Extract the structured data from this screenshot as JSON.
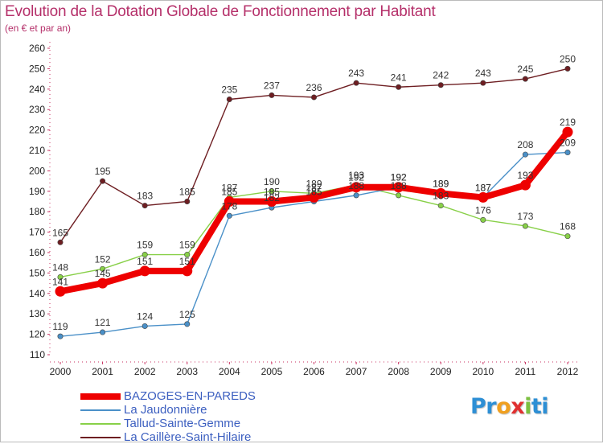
{
  "title": "Evolution de la Dotation Globale de Fonctionnement par Habitant",
  "subtitle": "(en € et par an)",
  "logo": {
    "text": "Proxiti",
    "letters": [
      "P",
      "r",
      "o",
      "x",
      "i",
      "t",
      "i"
    ],
    "colors": [
      "#2d8fd5",
      "#2d8fd5",
      "#f0a020",
      "#e03030",
      "#7cc040",
      "#2d8fd5",
      "#2d8fd5"
    ]
  },
  "chart_data": {
    "type": "line",
    "title": "Evolution de la Dotation Globale de Fonctionnement par Habitant",
    "ylabel": "(en € et par an)",
    "xlabel": "",
    "ylim": [
      110,
      260
    ],
    "yticks": [
      110,
      120,
      130,
      140,
      150,
      160,
      170,
      180,
      190,
      200,
      210,
      220,
      230,
      240,
      250,
      260
    ],
    "categories": [
      "2000",
      "2001",
      "2002",
      "2003",
      "2004",
      "2005",
      "2006",
      "2007",
      "2008",
      "2009",
      "2010",
      "2011",
      "2012"
    ],
    "grid": false,
    "legend_position": "bottom-left",
    "series": [
      {
        "name": "La Caillère-Saint-Hilaire",
        "color": "#6e1e22",
        "values": [
          165,
          195,
          183,
          185,
          235,
          237,
          236,
          243,
          241,
          242,
          243,
          245,
          250
        ]
      },
      {
        "name": "Tallud-Sainte-Gemme",
        "color": "#88d048",
        "values": [
          148,
          152,
          159,
          159,
          187,
          190,
          189,
          193,
          188,
          183,
          176,
          173,
          168
        ]
      },
      {
        "name": "La Jaudonnière",
        "color": "#4a90c8",
        "values": [
          119,
          121,
          124,
          125,
          178,
          182,
          185,
          188,
          192,
          189,
          187,
          208,
          209
        ]
      },
      {
        "name": "BAZOGES-EN-PAREDS",
        "color": "#ee0000",
        "values": [
          141,
          145,
          151,
          151,
          185,
          185,
          187,
          192,
          192,
          189,
          187,
          193,
          219
        ]
      }
    ]
  }
}
